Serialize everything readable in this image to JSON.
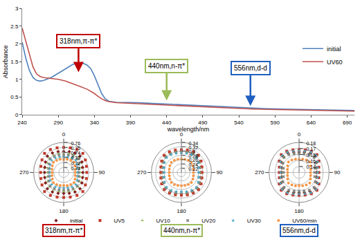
{
  "chart_data": [
    {
      "type": "line",
      "x_label": "wavelength/nm",
      "y_label": "Absorbance",
      "xlim": [
        240,
        700
      ],
      "xticks": [
        240,
        290,
        340,
        390,
        440,
        490,
        540,
        590,
        640,
        690
      ],
      "ylim": [
        0,
        3
      ],
      "yticks": [
        0,
        0.5,
        1,
        1.5,
        2,
        2.5,
        3
      ],
      "legend": "right",
      "grid": false,
      "series": [
        {
          "name": "initial",
          "color": "#4f81bd",
          "x": [
            240,
            245,
            250,
            255,
            260,
            265,
            270,
            280,
            290,
            300,
            310,
            318,
            325,
            330,
            335,
            340,
            345,
            350,
            355,
            360,
            370,
            380,
            400,
            420,
            440,
            460,
            480,
            500,
            520,
            540,
            560,
            580,
            600,
            620,
            640,
            660,
            680,
            700
          ],
          "values": [
            2.05,
            1.6,
            1.25,
            1.05,
            0.97,
            0.95,
            0.97,
            1.05,
            1.17,
            1.3,
            1.42,
            1.47,
            1.45,
            1.4,
            1.3,
            1.1,
            0.85,
            0.6,
            0.45,
            0.38,
            0.35,
            0.35,
            0.34,
            0.32,
            0.3,
            0.28,
            0.26,
            0.24,
            0.22,
            0.2,
            0.19,
            0.17,
            0.16,
            0.15,
            0.14,
            0.13,
            0.12,
            0.12
          ]
        },
        {
          "name": "UV60",
          "color": "#c0504d",
          "x": [
            240,
            245,
            250,
            255,
            260,
            265,
            270,
            280,
            290,
            300,
            310,
            320,
            330,
            340,
            345,
            350,
            355,
            360,
            370,
            380,
            400,
            420,
            440,
            460,
            480,
            500,
            520,
            540,
            560,
            580,
            600,
            620,
            640,
            660,
            680,
            700
          ],
          "values": [
            2.45,
            2.1,
            1.7,
            1.35,
            1.15,
            1.08,
            1.05,
            1.03,
            1.0,
            0.95,
            0.88,
            0.8,
            0.72,
            0.6,
            0.52,
            0.45,
            0.4,
            0.37,
            0.34,
            0.33,
            0.32,
            0.3,
            0.28,
            0.26,
            0.24,
            0.22,
            0.2,
            0.18,
            0.16,
            0.15,
            0.14,
            0.13,
            0.12,
            0.11,
            0.1,
            0.1
          ]
        }
      ],
      "annotations": [
        {
          "text": "318nm,π-π*",
          "x": 318,
          "y": 1.2,
          "color": "#c00000"
        },
        {
          "text": "440nm,n-π*",
          "x": 440,
          "y": 0.4,
          "color": "#9bbb59"
        },
        {
          "text": "556nm,d-d",
          "x": 556,
          "y": 0.25,
          "color": "#1f5fbf"
        }
      ]
    },
    {
      "type": "polar",
      "label": {
        "text": "318nm,π-π*",
        "color": "#c00000"
      },
      "rlim": [
        0.7,
        0.76
      ],
      "rticks": [
        0.71,
        0.72,
        0.73,
        0.74,
        0.75,
        0.76
      ],
      "theta_ticks": [
        0,
        90,
        180,
        270
      ],
      "legend": "bottom",
      "theta": [
        0,
        15,
        30,
        45,
        60,
        75,
        90,
        105,
        120,
        135,
        150,
        165,
        180,
        195,
        210,
        225,
        240,
        255,
        270,
        285,
        300,
        315,
        330,
        345
      ],
      "series": [
        {
          "name": "initial",
          "color": "#7f1f1f",
          "marker": "diamond",
          "values": [
            0.742,
            0.743,
            0.745,
            0.746,
            0.742,
            0.739,
            0.738,
            0.739,
            0.742,
            0.746,
            0.745,
            0.743,
            0.742,
            0.743,
            0.745,
            0.746,
            0.742,
            0.739,
            0.738,
            0.739,
            0.742,
            0.746,
            0.745,
            0.743
          ]
        },
        {
          "name": "UV5",
          "color": "#c0392b",
          "marker": "square",
          "values": [
            0.75,
            0.751,
            0.753,
            0.754,
            0.75,
            0.747,
            0.746,
            0.747,
            0.75,
            0.754,
            0.753,
            0.751,
            0.75,
            0.751,
            0.753,
            0.754,
            0.75,
            0.747,
            0.746,
            0.747,
            0.75,
            0.754,
            0.753,
            0.751
          ]
        },
        {
          "name": "UV10",
          "color": "#9bbb59",
          "marker": "triangle-up",
          "values": [
            0.738,
            0.739,
            0.74,
            0.741,
            0.737,
            0.734,
            0.733,
            0.734,
            0.737,
            0.741,
            0.74,
            0.739,
            0.738,
            0.739,
            0.74,
            0.741,
            0.737,
            0.734,
            0.733,
            0.734,
            0.737,
            0.741,
            0.74,
            0.739
          ]
        },
        {
          "name": "UV20",
          "color": "#7f7f7f",
          "marker": "x",
          "values": [
            0.735,
            0.736,
            0.737,
            0.738,
            0.734,
            0.731,
            0.73,
            0.731,
            0.734,
            0.738,
            0.737,
            0.736,
            0.735,
            0.736,
            0.737,
            0.738,
            0.734,
            0.731,
            0.73,
            0.731,
            0.734,
            0.738,
            0.737,
            0.736
          ]
        },
        {
          "name": "UV30",
          "color": "#4bacc6",
          "marker": "star",
          "values": [
            0.731,
            0.732,
            0.733,
            0.734,
            0.731,
            0.728,
            0.727,
            0.728,
            0.731,
            0.734,
            0.733,
            0.732,
            0.731,
            0.732,
            0.733,
            0.734,
            0.731,
            0.728,
            0.727,
            0.728,
            0.731,
            0.734,
            0.733,
            0.732
          ]
        },
        {
          "name": "UV60/min",
          "color": "#f79646",
          "marker": "circle",
          "values": [
            0.726,
            0.727,
            0.728,
            0.729,
            0.726,
            0.724,
            0.723,
            0.724,
            0.726,
            0.729,
            0.728,
            0.727,
            0.726,
            0.727,
            0.728,
            0.729,
            0.726,
            0.724,
            0.723,
            0.724,
            0.726,
            0.729,
            0.728,
            0.727
          ]
        }
      ]
    },
    {
      "type": "polar",
      "label": {
        "text": "440nm,n-π*",
        "color": "#9bbb59"
      },
      "rlim": [
        0.2,
        0.34
      ],
      "rticks": [
        0.22,
        0.24,
        0.26,
        0.28,
        0.3,
        0.32,
        0.34
      ],
      "theta_ticks": [
        0,
        90,
        180,
        270
      ],
      "legend": "bottom",
      "theta": [
        0,
        15,
        30,
        45,
        60,
        75,
        90,
        105,
        120,
        135,
        150,
        165,
        180,
        195,
        210,
        225,
        240,
        255,
        270,
        285,
        300,
        315,
        330,
        345
      ],
      "series": [
        {
          "name": "initial",
          "color": "#7f1f1f",
          "marker": "diamond",
          "values": [
            0.3,
            0.302,
            0.305,
            0.307,
            0.3,
            0.293,
            0.29,
            0.293,
            0.3,
            0.307,
            0.305,
            0.302,
            0.3,
            0.302,
            0.305,
            0.307,
            0.3,
            0.293,
            0.29,
            0.293,
            0.3,
            0.307,
            0.305,
            0.302
          ]
        },
        {
          "name": "UV5",
          "color": "#c0392b",
          "marker": "square",
          "values": [
            0.306,
            0.308,
            0.311,
            0.313,
            0.306,
            0.299,
            0.296,
            0.299,
            0.306,
            0.313,
            0.311,
            0.308,
            0.306,
            0.308,
            0.311,
            0.313,
            0.306,
            0.299,
            0.296,
            0.299,
            0.306,
            0.313,
            0.311,
            0.308
          ]
        },
        {
          "name": "UV10",
          "color": "#9bbb59",
          "marker": "triangle-up",
          "values": [
            0.298,
            0.3,
            0.303,
            0.305,
            0.298,
            0.291,
            0.288,
            0.291,
            0.298,
            0.305,
            0.303,
            0.3,
            0.298,
            0.3,
            0.303,
            0.305,
            0.298,
            0.291,
            0.288,
            0.291,
            0.298,
            0.305,
            0.303,
            0.3
          ]
        },
        {
          "name": "UV20",
          "color": "#7f7f7f",
          "marker": "x",
          "values": [
            0.294,
            0.296,
            0.299,
            0.301,
            0.294,
            0.287,
            0.284,
            0.287,
            0.294,
            0.301,
            0.299,
            0.296,
            0.294,
            0.296,
            0.299,
            0.301,
            0.294,
            0.287,
            0.284,
            0.287,
            0.294,
            0.301,
            0.299,
            0.296
          ]
        },
        {
          "name": "UV30",
          "color": "#4bacc6",
          "marker": "star",
          "values": [
            0.29,
            0.292,
            0.295,
            0.297,
            0.29,
            0.283,
            0.28,
            0.283,
            0.29,
            0.297,
            0.295,
            0.292,
            0.29,
            0.292,
            0.295,
            0.297,
            0.29,
            0.283,
            0.28,
            0.283,
            0.29,
            0.297,
            0.295,
            0.292
          ]
        },
        {
          "name": "UV60/min",
          "color": "#f79646",
          "marker": "circle",
          "values": [
            0.262,
            0.263,
            0.265,
            0.266,
            0.262,
            0.258,
            0.256,
            0.258,
            0.262,
            0.266,
            0.265,
            0.263,
            0.262,
            0.263,
            0.265,
            0.266,
            0.262,
            0.258,
            0.256,
            0.258,
            0.262,
            0.266,
            0.265,
            0.263
          ]
        }
      ]
    },
    {
      "type": "polar",
      "label": {
        "text": "556nm,d-d",
        "color": "#1f5fbf"
      },
      "rlim": [
        0.13,
        0.18
      ],
      "rticks": [
        0.14,
        0.15,
        0.16,
        0.17,
        0.18
      ],
      "theta_ticks": [
        0,
        90,
        180,
        270
      ],
      "legend": "bottom",
      "theta": [
        0,
        15,
        30,
        45,
        60,
        75,
        90,
        105,
        120,
        135,
        150,
        165,
        180,
        195,
        210,
        225,
        240,
        255,
        270,
        285,
        300,
        315,
        330,
        345
      ],
      "series": [
        {
          "name": "initial",
          "color": "#7f1f1f",
          "marker": "diamond",
          "values": [
            0.164,
            0.165,
            0.167,
            0.168,
            0.164,
            0.16,
            0.159,
            0.16,
            0.164,
            0.168,
            0.167,
            0.165,
            0.164,
            0.165,
            0.167,
            0.168,
            0.164,
            0.16,
            0.159,
            0.16,
            0.164,
            0.168,
            0.167,
            0.165
          ]
        },
        {
          "name": "UV5",
          "color": "#c0392b",
          "marker": "square",
          "values": [
            0.168,
            0.169,
            0.171,
            0.172,
            0.168,
            0.164,
            0.163,
            0.164,
            0.168,
            0.172,
            0.171,
            0.169,
            0.168,
            0.169,
            0.171,
            0.172,
            0.168,
            0.164,
            0.163,
            0.164,
            0.168,
            0.172,
            0.171,
            0.169
          ]
        },
        {
          "name": "UV10",
          "color": "#9bbb59",
          "marker": "triangle-up",
          "values": [
            0.162,
            0.163,
            0.165,
            0.166,
            0.162,
            0.158,
            0.157,
            0.158,
            0.162,
            0.166,
            0.165,
            0.163,
            0.162,
            0.163,
            0.165,
            0.166,
            0.162,
            0.158,
            0.157,
            0.158,
            0.162,
            0.166,
            0.165,
            0.163
          ]
        },
        {
          "name": "UV20",
          "color": "#7f7f7f",
          "marker": "x",
          "values": [
            0.161,
            0.162,
            0.164,
            0.165,
            0.161,
            0.157,
            0.156,
            0.157,
            0.161,
            0.165,
            0.164,
            0.162,
            0.161,
            0.162,
            0.164,
            0.165,
            0.161,
            0.157,
            0.156,
            0.157,
            0.161,
            0.165,
            0.164,
            0.162
          ]
        },
        {
          "name": "UV30",
          "color": "#4bacc6",
          "marker": "star",
          "values": [
            0.166,
            0.167,
            0.169,
            0.17,
            0.166,
            0.162,
            0.161,
            0.162,
            0.166,
            0.17,
            0.169,
            0.167,
            0.166,
            0.167,
            0.169,
            0.17,
            0.166,
            0.162,
            0.161,
            0.162,
            0.166,
            0.17,
            0.169,
            0.167
          ]
        },
        {
          "name": "UV60/min",
          "color": "#f79646",
          "marker": "circle",
          "values": [
            0.152,
            0.153,
            0.154,
            0.155,
            0.152,
            0.15,
            0.149,
            0.15,
            0.152,
            0.155,
            0.154,
            0.153,
            0.152,
            0.153,
            0.154,
            0.155,
            0.152,
            0.15,
            0.149,
            0.15,
            0.152,
            0.155,
            0.154,
            0.153
          ]
        }
      ]
    }
  ]
}
